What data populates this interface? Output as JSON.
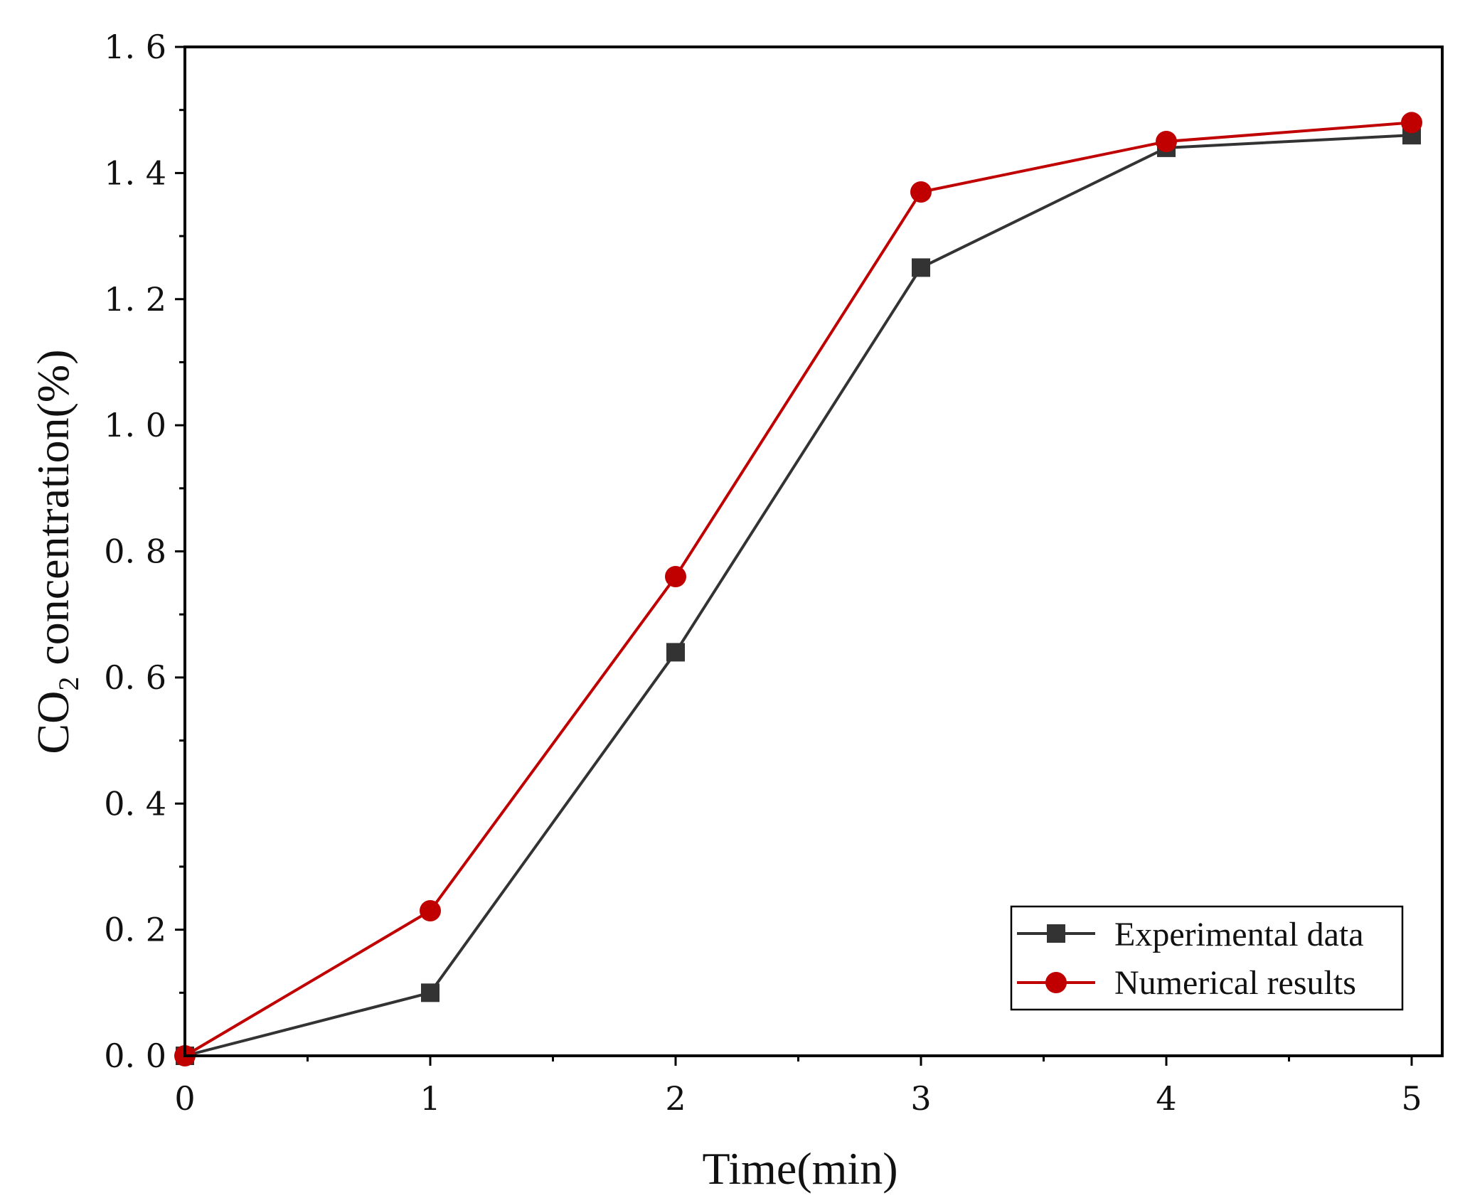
{
  "chart_data": {
    "type": "line",
    "title": "",
    "xlabel": "Time(min)",
    "ylabel_main": "CO",
    "ylabel_sub": "2",
    "ylabel_rest": " concentration(%)",
    "xlim": [
      0,
      5.1
    ],
    "ylim": [
      0,
      1.6
    ],
    "x_ticks": [
      0,
      1,
      2,
      3,
      4,
      5
    ],
    "y_ticks": [
      0.0,
      0.2,
      0.4,
      0.6,
      0.8,
      1.0,
      1.2,
      1.4,
      1.6
    ],
    "x_tick_labels": [
      "0",
      "1",
      "2",
      "3",
      "4",
      "5"
    ],
    "y_tick_labels": [
      "0. 0",
      "0. 2",
      "0. 4",
      "0. 6",
      "0. 8",
      "1. 0",
      "1. 2",
      "1. 4",
      "1. 6"
    ],
    "grid": false,
    "legend_position": "bottom-right",
    "x": [
      0,
      1,
      2,
      3,
      4,
      5
    ],
    "series": [
      {
        "name": "Experimental data",
        "marker": "square",
        "color": "#333333",
        "values": [
          0.0,
          0.1,
          0.64,
          1.25,
          1.44,
          1.46
        ]
      },
      {
        "name": "Numerical results",
        "marker": "circle",
        "color": "#c00000",
        "values": [
          0.0,
          0.23,
          0.76,
          1.37,
          1.45,
          1.48
        ]
      }
    ]
  }
}
